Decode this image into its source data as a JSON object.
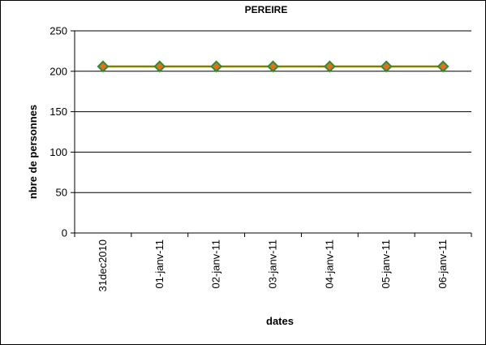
{
  "chart_data": {
    "type": "line",
    "title": "PEREIRE",
    "xlabel": "dates",
    "ylabel": "nbre de personnes",
    "categories": [
      "31dec2010",
      "01-janv-11",
      "02-janv-11",
      "03-janv-11",
      "04-janv-11",
      "05-janv-11",
      "06-janv-11"
    ],
    "series": [
      {
        "values": [
          206,
          206,
          206,
          206,
          206,
          206,
          206
        ],
        "color": "#808000",
        "marker": "diamond",
        "marker_color": "#e07020",
        "marker_edge": "#2e8b2e"
      }
    ],
    "ylim": [
      0,
      250
    ],
    "yticks": [
      0,
      50,
      100,
      150,
      200,
      250
    ],
    "grid": true,
    "legend": "none"
  }
}
